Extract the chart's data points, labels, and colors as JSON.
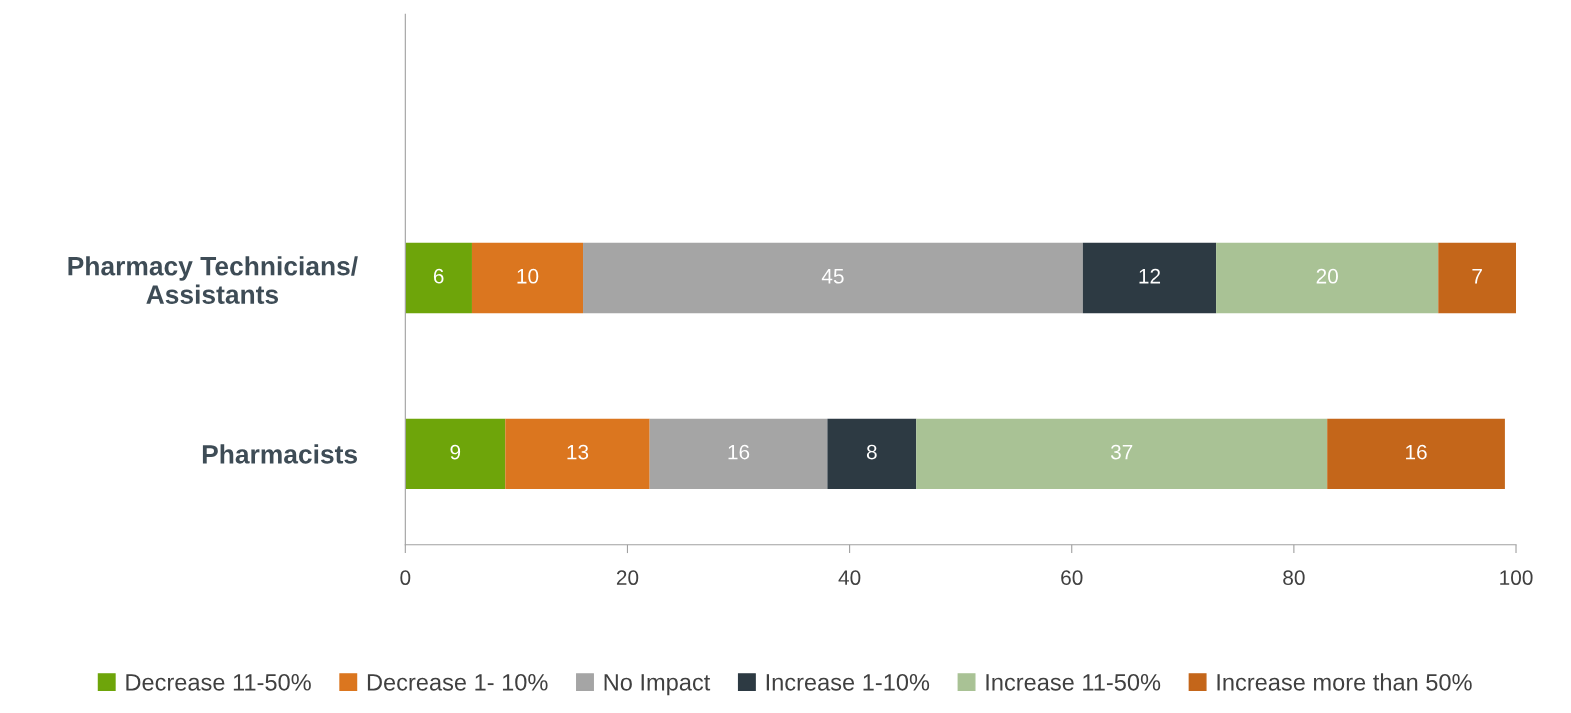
{
  "chart_data": {
    "type": "bar",
    "orientation": "horizontal",
    "stacked": true,
    "data_labels": true,
    "legend": "bottom",
    "grid": false,
    "categories": [
      "Pharmacy Technicians/\nAssistants",
      "Pharmacists"
    ],
    "xlim": [
      0,
      100
    ],
    "xticks": [
      0,
      20,
      40,
      60,
      80,
      100
    ],
    "series": [
      {
        "name": "Decrease 11-50%",
        "color": "#6ea50a",
        "values": [
          6,
          9
        ]
      },
      {
        "name": "Decrease 1- 10%",
        "color": "#db761f",
        "values": [
          10,
          13
        ]
      },
      {
        "name": "No Impact",
        "color": "#a5a5a5",
        "values": [
          45,
          16
        ]
      },
      {
        "name": "Increase 1-10%",
        "color": "#2d3a43",
        "values": [
          12,
          8
        ]
      },
      {
        "name": "Increase 11-50%",
        "color": "#a9c295",
        "values": [
          20,
          37
        ]
      },
      {
        "name": "Increase more than 50%",
        "color": "#c4661a",
        "values": [
          7,
          16
        ]
      }
    ]
  }
}
